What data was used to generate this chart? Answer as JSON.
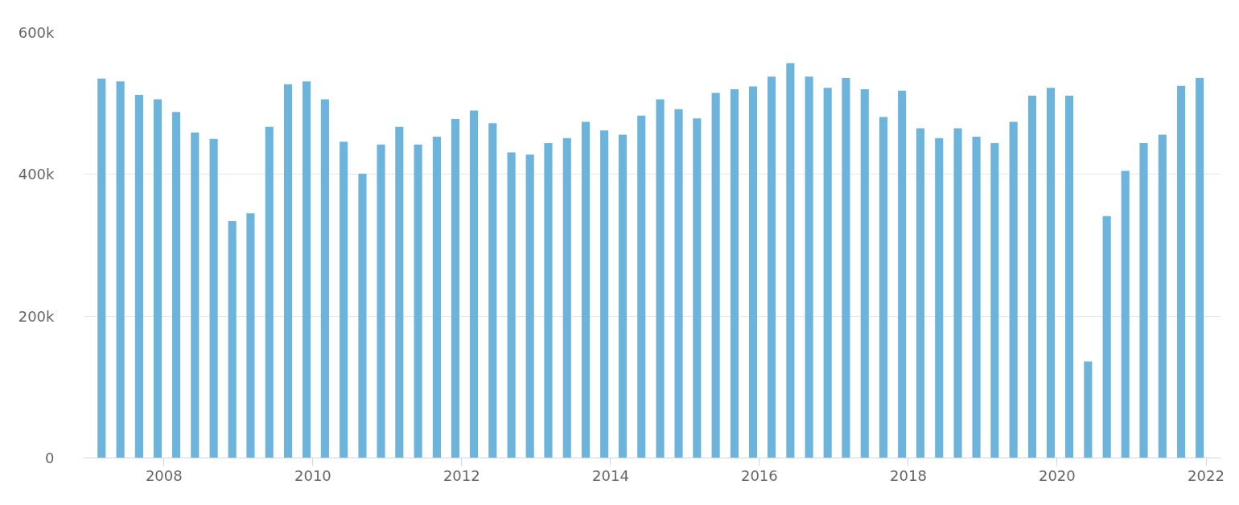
{
  "chart_data": {
    "type": "bar",
    "x": [
      "2007-03",
      "2007-06",
      "2007-09",
      "2007-12",
      "2008-03",
      "2008-06",
      "2008-09",
      "2008-12",
      "2009-03",
      "2009-06",
      "2009-09",
      "2009-12",
      "2010-03",
      "2010-06",
      "2010-09",
      "2010-12",
      "2011-03",
      "2011-06",
      "2011-09",
      "2011-12",
      "2012-03",
      "2012-06",
      "2012-09",
      "2012-12",
      "2013-03",
      "2013-06",
      "2013-09",
      "2013-12",
      "2014-03",
      "2014-06",
      "2014-09",
      "2014-12",
      "2015-03",
      "2015-06",
      "2015-09",
      "2015-12",
      "2016-03",
      "2016-06",
      "2016-09",
      "2016-12",
      "2017-03",
      "2017-06",
      "2017-09",
      "2017-12",
      "2018-03",
      "2018-06",
      "2018-09",
      "2018-12",
      "2019-03",
      "2019-06",
      "2019-09",
      "2019-12",
      "2020-03",
      "2020-06",
      "2020-09",
      "2020-12",
      "2021-03",
      "2021-06",
      "2021-09",
      "2021-12"
    ],
    "values": [
      535000,
      531000,
      512000,
      506000,
      488000,
      459000,
      450000,
      334000,
      345000,
      467000,
      527000,
      531000,
      506000,
      446000,
      401000,
      442000,
      467000,
      442000,
      453000,
      478000,
      490000,
      472000,
      431000,
      428000,
      444000,
      451000,
      474000,
      462000,
      456000,
      483000,
      506000,
      492000,
      479000,
      515000,
      520000,
      524000,
      538000,
      557000,
      538000,
      522000,
      536000,
      520000,
      481000,
      518000,
      465000,
      451000,
      465000,
      453000,
      444000,
      474000,
      511000,
      522000,
      511000,
      136000,
      341000,
      405000,
      444000,
      456000,
      525000,
      536000
    ],
    "color": "#6cb4dc",
    "xlim": [
      "2006-12-01",
      "2022-03-15"
    ],
    "xticks": [
      "2008",
      "2010",
      "2012",
      "2014",
      "2016",
      "2018",
      "2020",
      "2022"
    ],
    "ylim": [
      0,
      600000
    ],
    "yticks": [
      0,
      {
        "value": 200000,
        "label": "200k"
      },
      {
        "value": 400000,
        "label": "400k"
      },
      {
        "value": 600000,
        "label": "600k"
      }
    ],
    "grid": "y"
  }
}
